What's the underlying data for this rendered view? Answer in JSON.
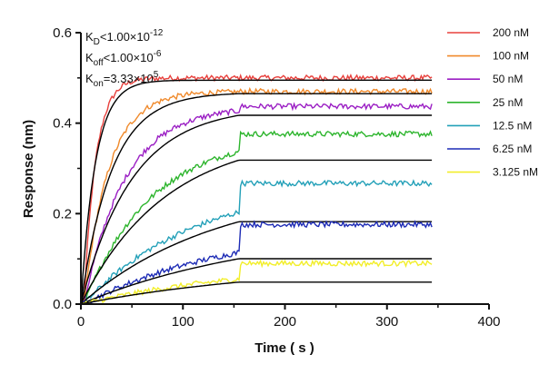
{
  "chart_data": {
    "type": "line",
    "xlabel": "Time ( s )",
    "ylabel": "Response (nm)",
    "xlim": [
      0,
      400
    ],
    "ylim": [
      0,
      0.6
    ],
    "x_ticks": [
      "0",
      "100",
      "200",
      "300",
      "400"
    ],
    "y_ticks": [
      "0.0",
      "0.2",
      "0.4",
      "0.6"
    ],
    "grid": false,
    "legend_position": "right",
    "annotations": [
      {
        "main": "K",
        "sub": "D",
        "rest": "<1.00×10",
        "sup": "-12"
      },
      {
        "main": "K",
        "sub": "off",
        "rest": "<1.00×10",
        "sup": "-6"
      },
      {
        "main": "K",
        "sub": "on",
        "rest": "=3.33×10",
        "sup": "5"
      }
    ],
    "fit_color": "#000000",
    "association_end_s": 155,
    "end_s": 345,
    "series": [
      {
        "name": "200 nM",
        "color": "#e8413d",
        "plateau": 0.5,
        "kobs": 0.07,
        "fit_plateau": 0.495
      },
      {
        "name": "100 nM",
        "color": "#f0892a",
        "plateau": 0.47,
        "kobs": 0.033,
        "fit_plateau": 0.468
      },
      {
        "name": "50 nM",
        "color": "#9b1fc4",
        "plateau": 0.437,
        "kobs": 0.02,
        "fit_plateau": 0.437
      },
      {
        "name": "25 nM",
        "color": "#2db52d",
        "plateau": 0.376,
        "kobs": 0.012,
        "fit_plateau": 0.377
      },
      {
        "name": "12.5 nM",
        "color": "#23a0b8",
        "plateau": 0.267,
        "kobs": 0.0075,
        "fit_plateau": 0.265
      },
      {
        "name": "6.25 nM",
        "color": "#1d2bb5",
        "plateau": 0.176,
        "kobs": 0.0055,
        "fit_plateau": 0.175
      },
      {
        "name": "3.125 nM",
        "color": "#f2ee2a",
        "plateau": 0.09,
        "kobs": 0.005,
        "fit_plateau": 0.09
      }
    ]
  }
}
